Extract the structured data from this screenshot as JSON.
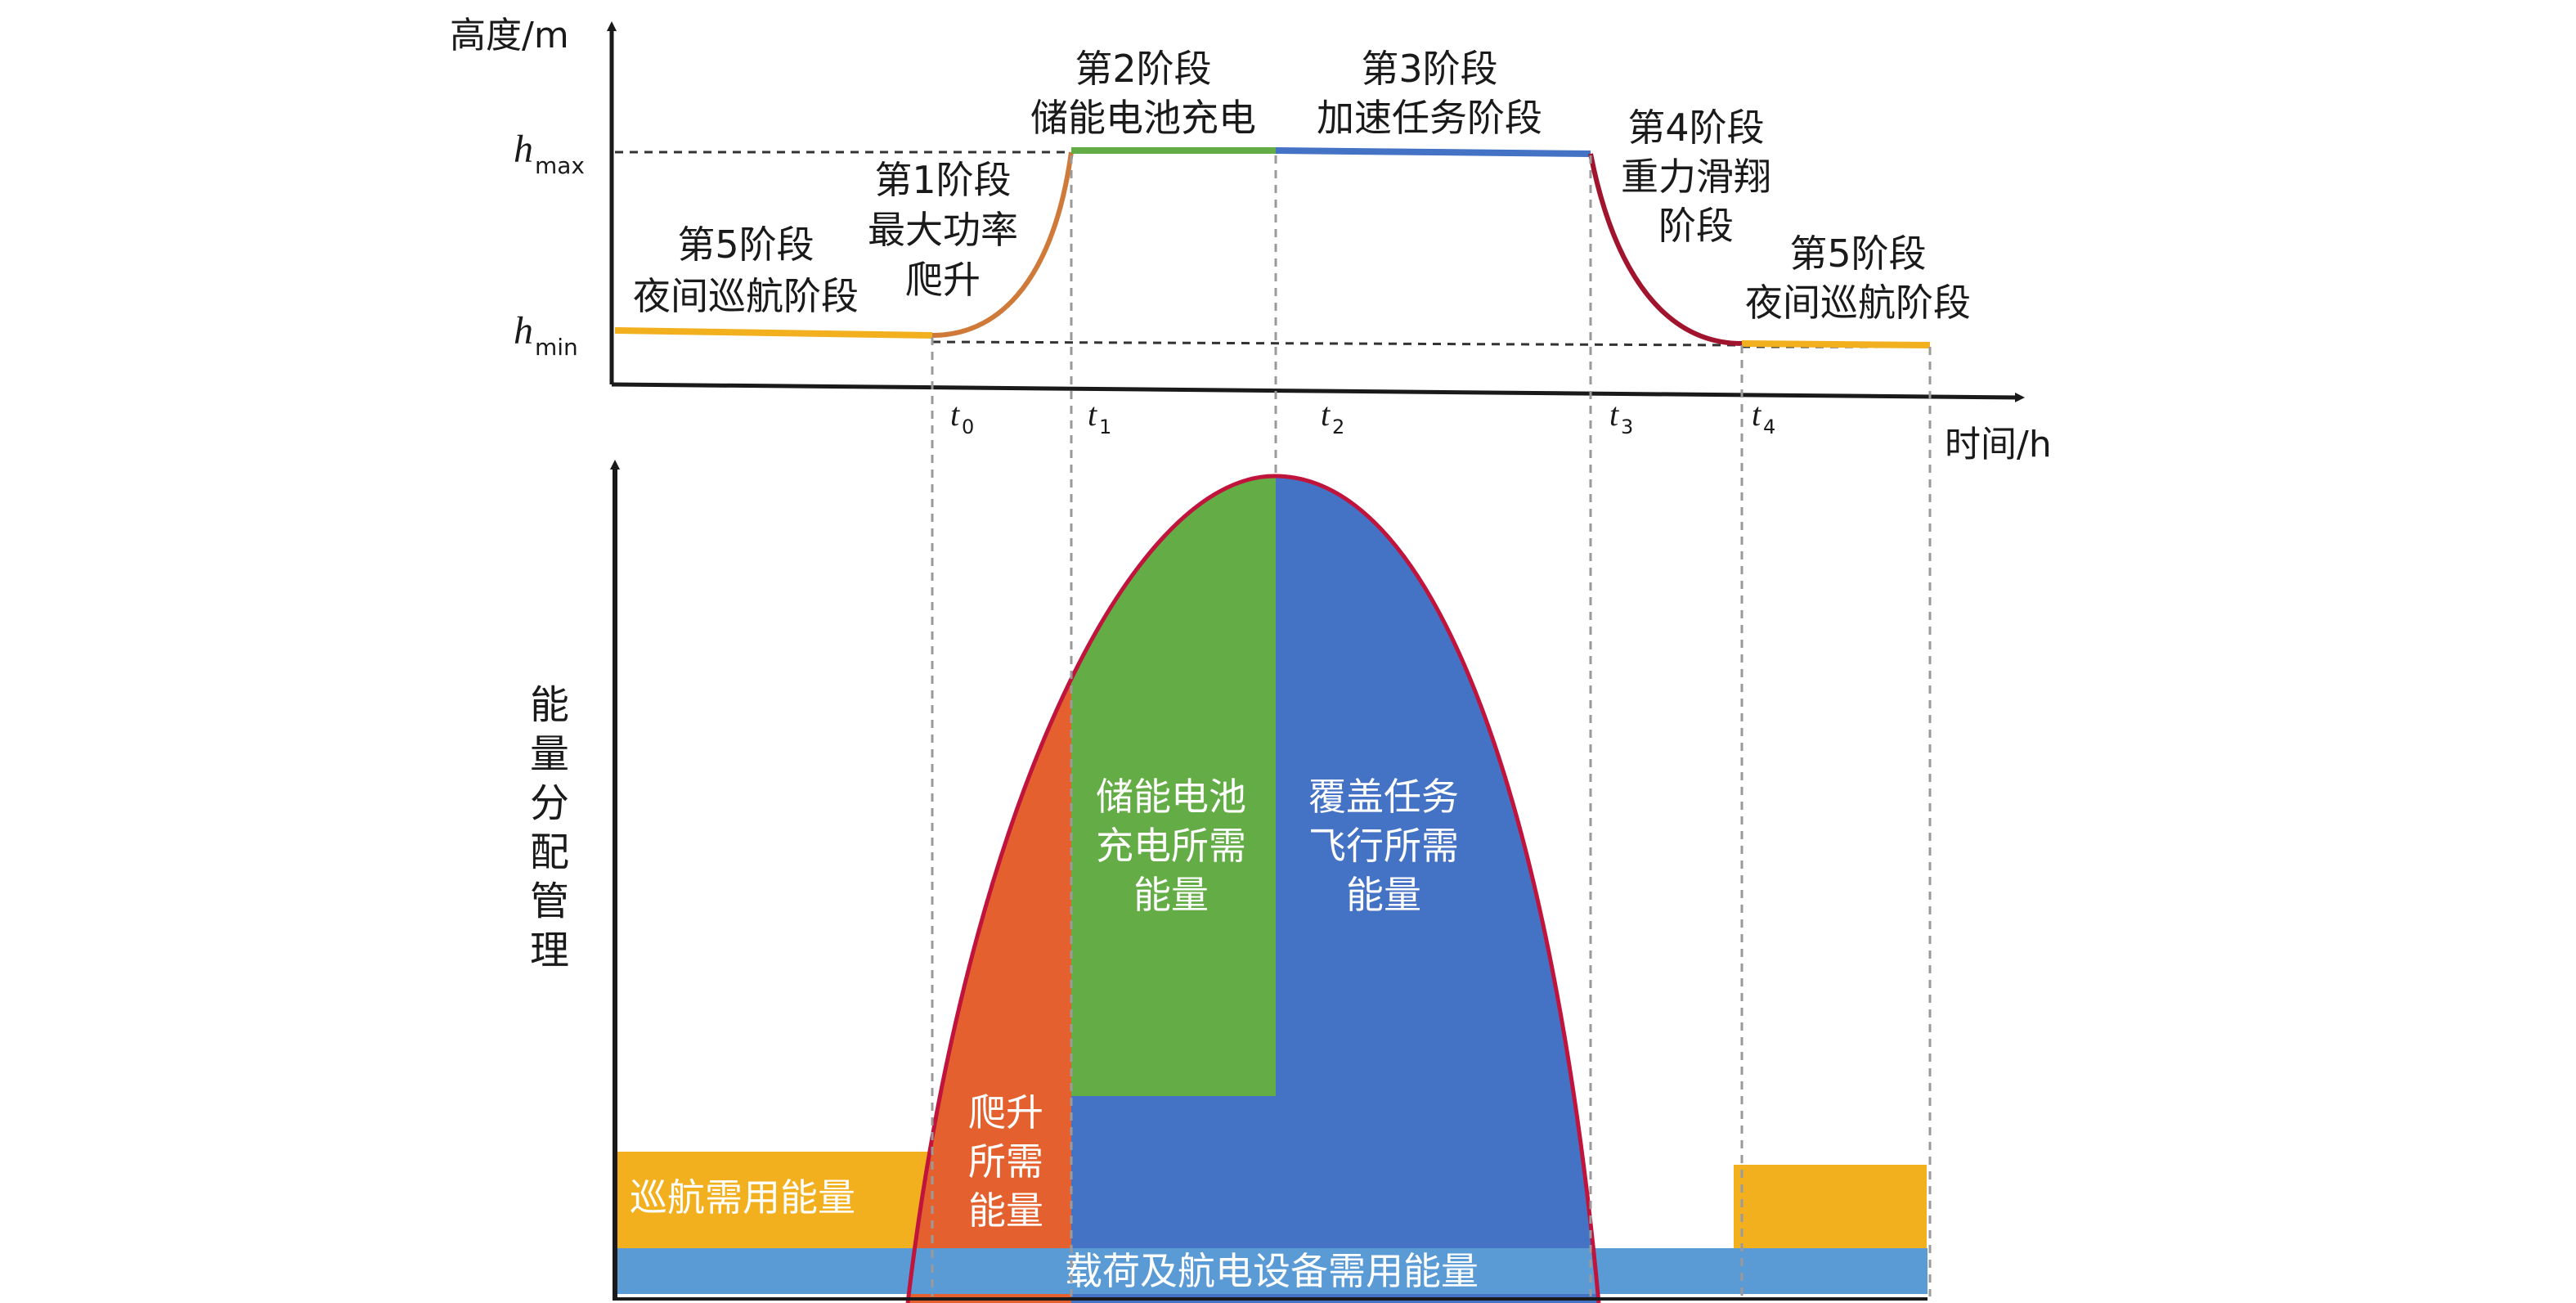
{
  "top_axes": {
    "y_label": "高度/m",
    "x_label": "时间/h",
    "h_max": {
      "base": "h",
      "sub": "max"
    },
    "h_min": {
      "base": "h",
      "sub": "min"
    },
    "ticks": [
      {
        "base": "t",
        "sub": "0"
      },
      {
        "base": "t",
        "sub": "1"
      },
      {
        "base": "t",
        "sub": "2"
      },
      {
        "base": "t",
        "sub": "3"
      },
      {
        "base": "t",
        "sub": "4"
      }
    ]
  },
  "stages": {
    "stage5_left": [
      "第5阶段",
      "夜间巡航阶段"
    ],
    "stage1": [
      "第1阶段",
      "最大功率",
      "爬升"
    ],
    "stage2": [
      "第2阶段",
      "储能电池充电"
    ],
    "stage3": [
      "第3阶段",
      "加速任务阶段"
    ],
    "stage4": [
      "第4阶段",
      "重力滑翔",
      "阶段"
    ],
    "stage5_right": [
      "第5阶段",
      "夜间巡航阶段"
    ]
  },
  "energy": {
    "y_label": [
      "能",
      "量",
      "分",
      "配",
      "管",
      "理"
    ],
    "cruise": "巡航需用能量",
    "climb": [
      "爬升",
      "所需",
      "能量"
    ],
    "battery": [
      "储能电池",
      "充电所需",
      "能量"
    ],
    "mission": [
      "覆盖任务",
      "飞行所需",
      "能量"
    ],
    "payload": "载荷及航电设备需用能量"
  },
  "colors": {
    "yellow": "#F2B01E",
    "green": "#63AC46",
    "blue": "#4472C4",
    "orange": "#E4602E",
    "light_blue": "#5B9BD5",
    "red_curve": "#C0143C",
    "brown_climb": "#D07A3A",
    "grey_dash": "#9a9a9a"
  }
}
